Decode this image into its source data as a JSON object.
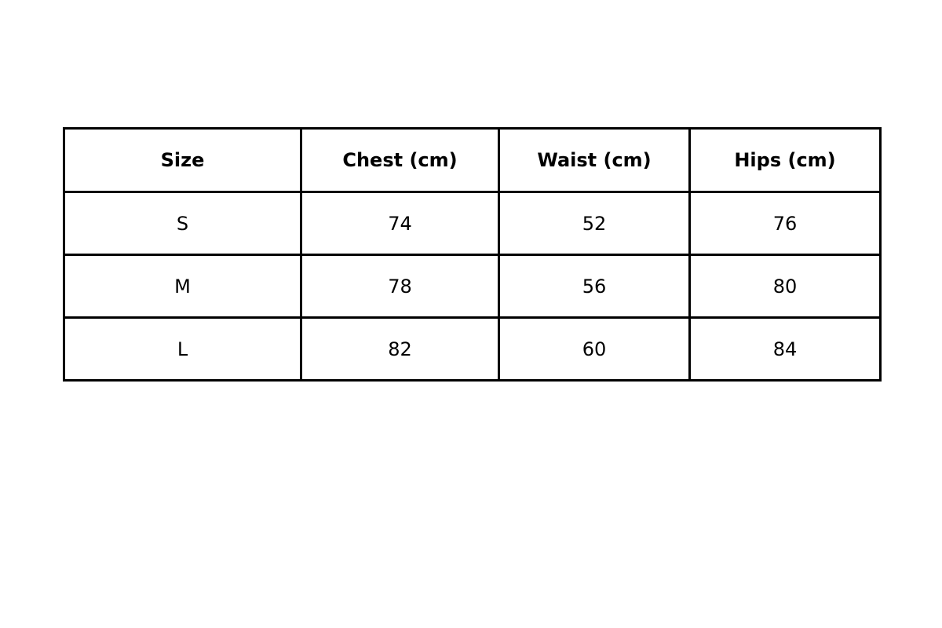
{
  "table": {
    "headers": [
      "Size",
      "Chest (cm)",
      "Waist (cm)",
      "Hips (cm)"
    ],
    "rows": [
      [
        "S",
        "74",
        "52",
        "76"
      ],
      [
        "M",
        "78",
        "56",
        "80"
      ],
      [
        "L",
        "82",
        "60",
        "84"
      ]
    ]
  }
}
